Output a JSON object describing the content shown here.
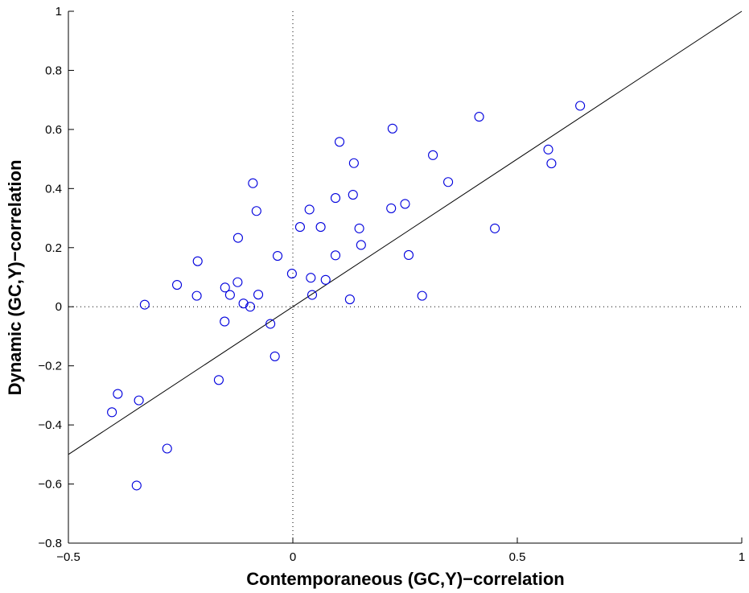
{
  "chart_data": {
    "type": "scatter",
    "xlabel": "Contemporaneous (GC,Y)−correlation",
    "ylabel": "Dynamic (GC,Y)−correlation",
    "xlim": [
      -0.5,
      1
    ],
    "ylim": [
      -0.8,
      1
    ],
    "x_ticks": [
      {
        "value": -0.5,
        "label": "−0.5"
      },
      {
        "value": 0,
        "label": "0"
      },
      {
        "value": 0.5,
        "label": "0.5"
      },
      {
        "value": 1,
        "label": "1"
      }
    ],
    "y_ticks": [
      {
        "value": -0.8,
        "label": "−0.8"
      },
      {
        "value": -0.6,
        "label": "−0.6"
      },
      {
        "value": -0.4,
        "label": "−0.4"
      },
      {
        "value": -0.2,
        "label": "−0.2"
      },
      {
        "value": 0,
        "label": "0"
      },
      {
        "value": 0.2,
        "label": "0.2"
      },
      {
        "value": 0.4,
        "label": "0.4"
      },
      {
        "value": 0.6,
        "label": "0.6"
      },
      {
        "value": 0.8,
        "label": "0.8"
      },
      {
        "value": 1,
        "label": "1"
      }
    ],
    "grid": false,
    "reference_lines": {
      "x_zero_dotted": true,
      "y_zero_dotted": true
    },
    "diagonal_line": {
      "from": [
        -0.5,
        -0.5
      ],
      "to": [
        1,
        1
      ],
      "color": "#000000"
    },
    "marker_color": "#0000dd",
    "points": [
      {
        "x": 0.64,
        "y": 0.68
      },
      {
        "x": 0.415,
        "y": 0.643
      },
      {
        "x": 0.222,
        "y": 0.603
      },
      {
        "x": 0.104,
        "y": 0.558
      },
      {
        "x": 0.569,
        "y": 0.532
      },
      {
        "x": 0.312,
        "y": 0.513
      },
      {
        "x": 0.136,
        "y": 0.486
      },
      {
        "x": 0.576,
        "y": 0.485
      },
      {
        "x": 0.346,
        "y": 0.422
      },
      {
        "x": -0.089,
        "y": 0.418
      },
      {
        "x": 0.134,
        "y": 0.379
      },
      {
        "x": 0.095,
        "y": 0.368
      },
      {
        "x": 0.25,
        "y": 0.348
      },
      {
        "x": 0.219,
        "y": 0.333
      },
      {
        "x": 0.037,
        "y": 0.329
      },
      {
        "x": -0.081,
        "y": 0.324
      },
      {
        "x": 0.016,
        "y": 0.27
      },
      {
        "x": 0.062,
        "y": 0.27
      },
      {
        "x": 0.148,
        "y": 0.265
      },
      {
        "x": 0.45,
        "y": 0.265
      },
      {
        "x": -0.122,
        "y": 0.233
      },
      {
        "x": 0.152,
        "y": 0.209
      },
      {
        "x": 0.258,
        "y": 0.175
      },
      {
        "x": 0.095,
        "y": 0.174
      },
      {
        "x": -0.034,
        "y": 0.172
      },
      {
        "x": -0.212,
        "y": 0.154
      },
      {
        "x": -0.002,
        "y": 0.112
      },
      {
        "x": 0.04,
        "y": 0.098
      },
      {
        "x": 0.073,
        "y": 0.091
      },
      {
        "x": -0.123,
        "y": 0.083
      },
      {
        "x": -0.258,
        "y": 0.074
      },
      {
        "x": -0.151,
        "y": 0.065
      },
      {
        "x": -0.14,
        "y": 0.04
      },
      {
        "x": 0.043,
        "y": 0.04
      },
      {
        "x": -0.077,
        "y": 0.041
      },
      {
        "x": -0.214,
        "y": 0.037
      },
      {
        "x": 0.288,
        "y": 0.037
      },
      {
        "x": 0.127,
        "y": 0.025
      },
      {
        "x": -0.11,
        "y": 0.011
      },
      {
        "x": -0.33,
        "y": 0.007
      },
      {
        "x": -0.095,
        "y": 0.0
      },
      {
        "x": -0.152,
        "y": -0.05
      },
      {
        "x": -0.05,
        "y": -0.058
      },
      {
        "x": -0.04,
        "y": -0.168
      },
      {
        "x": -0.165,
        "y": -0.248
      },
      {
        "x": -0.39,
        "y": -0.295
      },
      {
        "x": -0.343,
        "y": -0.317
      },
      {
        "x": -0.403,
        "y": -0.357
      },
      {
        "x": -0.28,
        "y": -0.48
      },
      {
        "x": -0.348,
        "y": -0.605
      }
    ]
  }
}
